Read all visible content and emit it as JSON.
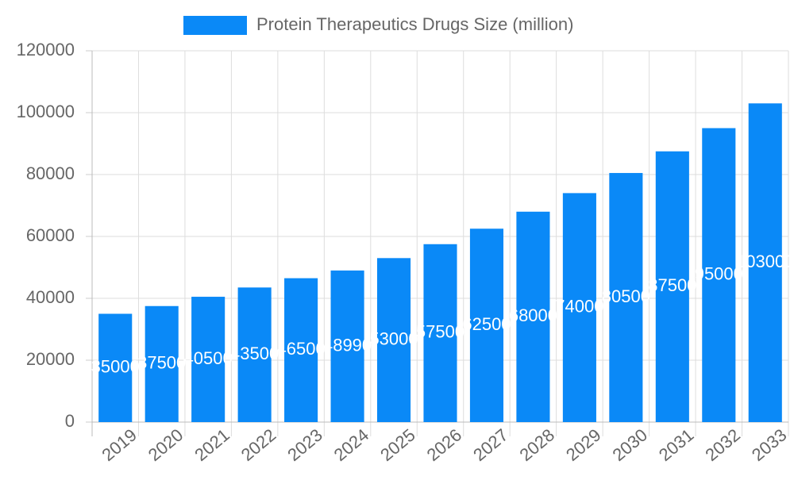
{
  "chart_data": {
    "type": "bar",
    "categories": [
      "2019",
      "2020",
      "2021",
      "2022",
      "2023",
      "2024",
      "2025",
      "2026",
      "2027",
      "2028",
      "2029",
      "2030",
      "2031",
      "2032",
      "2033"
    ],
    "series": [
      {
        "name": "Protein Therapeutics Drugs Size (million)",
        "color": "#0a89f7",
        "values": [
          35000,
          37500,
          40500,
          43500,
          46500,
          48990,
          53000,
          57500,
          62500,
          68000,
          74000,
          80500,
          87500,
          95000,
          103000
        ]
      }
    ],
    "ylim": [
      0,
      120000
    ],
    "yticks": [
      0,
      20000,
      40000,
      60000,
      80000,
      100000,
      120000
    ],
    "grid": true,
    "legend": "top"
  }
}
